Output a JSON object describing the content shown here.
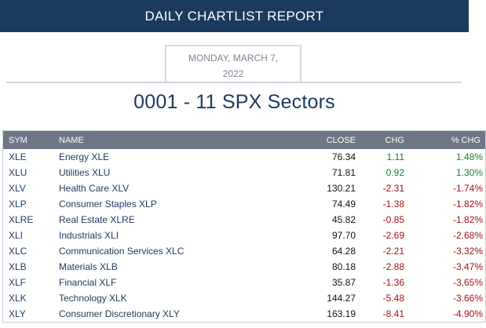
{
  "header": {
    "banner_title": "DAILY CHARTLIST REPORT",
    "date_line1": "MONDAY, MARCH 7,",
    "date_line2": "2022",
    "report_title": "0001 - 11 SPX Sectors"
  },
  "table": {
    "columns": {
      "sym": "SYM",
      "name": "NAME",
      "close": "CLOSE",
      "chg": "CHG",
      "pct": "% CHG"
    },
    "rows": [
      {
        "sym": "XLE",
        "name": "Energy XLE",
        "close": "76.34",
        "chg": "1.11",
        "pct": "1.48%",
        "dir": "pos"
      },
      {
        "sym": "XLU",
        "name": "Utilities XLU",
        "close": "71.81",
        "chg": "0.92",
        "pct": "1.30%",
        "dir": "pos"
      },
      {
        "sym": "XLV",
        "name": "Health Care XLV",
        "close": "130.21",
        "chg": "-2.31",
        "pct": "-1.74%",
        "dir": "neg"
      },
      {
        "sym": "XLP",
        "name": "Consumer Staples XLP",
        "close": "74.49",
        "chg": "-1.38",
        "pct": "-1.82%",
        "dir": "neg"
      },
      {
        "sym": "XLRE",
        "name": "Real Estate XLRE",
        "close": "45.82",
        "chg": "-0.85",
        "pct": "-1.82%",
        "dir": "neg"
      },
      {
        "sym": "XLI",
        "name": "Industrials XLI",
        "close": "97.70",
        "chg": "-2.69",
        "pct": "-2.68%",
        "dir": "neg"
      },
      {
        "sym": "XLC",
        "name": "Communication Services XLC",
        "close": "64.28",
        "chg": "-2.21",
        "pct": "-3.32%",
        "dir": "neg"
      },
      {
        "sym": "XLB",
        "name": "Materials XLB",
        "close": "80.18",
        "chg": "-2.88",
        "pct": "-3.47%",
        "dir": "neg"
      },
      {
        "sym": "XLF",
        "name": "Financial XLF",
        "close": "35.87",
        "chg": "-1.36",
        "pct": "-3.65%",
        "dir": "neg"
      },
      {
        "sym": "XLK",
        "name": "Technology XLK",
        "close": "144.27",
        "chg": "-5.48",
        "pct": "-3.66%",
        "dir": "neg"
      },
      {
        "sym": "XLY",
        "name": "Consumer Discretionary XLY",
        "close": "163.19",
        "chg": "-8.41",
        "pct": "-4.90%",
        "dir": "neg"
      }
    ]
  },
  "colors": {
    "banner_bg": "#1c3a5e",
    "header_row_bg": "#6d7785",
    "positive": "#1e7d2e",
    "negative": "#a31212",
    "link_text": "#1c3a5e"
  }
}
